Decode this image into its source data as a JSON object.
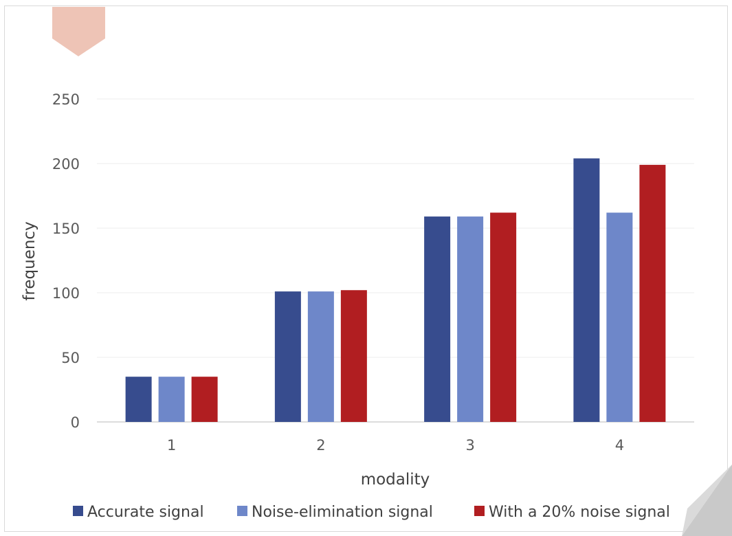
{
  "chart_data": {
    "type": "bar",
    "title": "",
    "xlabel": "modality",
    "ylabel": "frequency",
    "categories": [
      "1",
      "2",
      "3",
      "4"
    ],
    "ylim": [
      0,
      250
    ],
    "yticks": [
      "0",
      "50",
      "100",
      "150",
      "200",
      "250"
    ],
    "grid": true,
    "legend_position": "bottom",
    "series": [
      {
        "name": "Accurate signal",
        "color": "#374C8E",
        "values": [
          35,
          101,
          159,
          204
        ]
      },
      {
        "name": "Noise-elimination signal",
        "color": "#6E87C9",
        "values": [
          35,
          101,
          159,
          162
        ]
      },
      {
        "name": "With a 20% noise signal",
        "color": "#B11E21",
        "values": [
          35,
          102,
          162,
          199
        ]
      }
    ]
  },
  "decor": {
    "ribbon_color": "#EEC4B6",
    "page_curl_color": "#C9C9C9"
  }
}
